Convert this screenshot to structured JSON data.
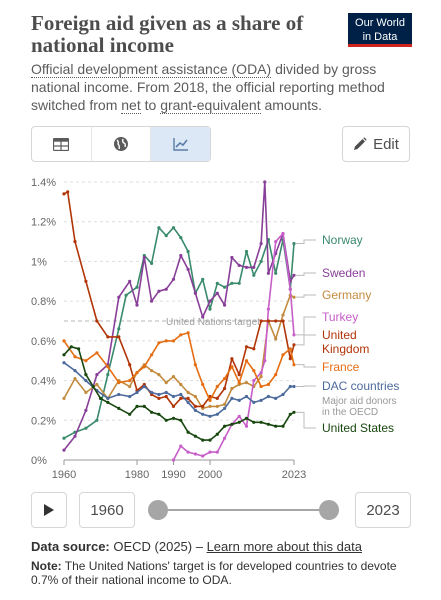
{
  "header": {
    "title": "Foreign aid given as a share of national income",
    "logo_line1": "Our World",
    "logo_line2": "in Data",
    "subtitle_pre": "Official development assistance (ODA)",
    "subtitle_mid": " divided by gross national income. From 2018, the official reporting method switched from ",
    "subtitle_net": "net",
    "subtitle_to": " to ",
    "subtitle_grant": "grant-equivalent",
    "subtitle_post": " amounts."
  },
  "toolbar": {
    "tabs": [
      "table-icon",
      "globe-icon",
      "line-chart-icon"
    ],
    "active_tab": "line-chart-icon",
    "edit_label": "Edit"
  },
  "timeline": {
    "start": "1960",
    "end": "2023"
  },
  "footer": {
    "source_label": "Data source:",
    "source_text": " OECD (2025) – ",
    "source_link": "Learn more about this data",
    "note_label": "Note:",
    "note_text": " The United Nations' target is for developed countries to devote 0.7% of their national income to ODA."
  },
  "chart_data": {
    "type": "line",
    "ylim": [
      0,
      1.4
    ],
    "xlim": [
      1960,
      2023
    ],
    "yticks": [
      "0%",
      "0.2%",
      "0.4%",
      "0.6%",
      "0.8%",
      "1%",
      "1.2%",
      "1.4%"
    ],
    "xticks": [
      "1960",
      "1980",
      "1990",
      "2000",
      "2023"
    ],
    "reference_line": {
      "value": 0.7,
      "label": "United Nations target"
    },
    "legend_position": "right",
    "series": [
      {
        "name": "Norway",
        "color": "#3a8a6c",
        "x": [
          1960,
          1963,
          1966,
          1969,
          1972,
          1975,
          1977,
          1980,
          1982,
          1984,
          1986,
          1988,
          1990,
          1992,
          1994,
          1996,
          1998,
          2000,
          2002,
          2004,
          2006,
          2008,
          2010,
          2012,
          2014,
          2016,
          2018,
          2020,
          2022,
          2023
        ],
        "y": [
          0.11,
          0.14,
          0.16,
          0.2,
          0.43,
          0.66,
          0.83,
          0.87,
          1.03,
          0.99,
          1.17,
          1.13,
          1.17,
          1.12,
          1.05,
          0.84,
          0.91,
          0.76,
          0.89,
          0.87,
          0.89,
          0.89,
          1.05,
          0.93,
          1.0,
          1.11,
          0.94,
          1.11,
          0.86,
          1.09
        ]
      },
      {
        "name": "Sweden",
        "color": "#883f98",
        "x": [
          1960,
          1963,
          1966,
          1969,
          1972,
          1975,
          1978,
          1980,
          1982,
          1984,
          1986,
          1988,
          1990,
          1992,
          1994,
          1996,
          1998,
          2000,
          2002,
          2004,
          2006,
          2008,
          2010,
          2012,
          2014,
          2015,
          2016,
          2018,
          2020,
          2022,
          2023
        ],
        "y": [
          0.05,
          0.12,
          0.25,
          0.43,
          0.48,
          0.82,
          0.9,
          0.78,
          1.02,
          0.8,
          0.85,
          0.86,
          0.91,
          1.03,
          0.96,
          0.84,
          0.72,
          0.8,
          0.84,
          0.78,
          1.02,
          0.98,
          0.97,
          0.97,
          1.09,
          1.4,
          0.94,
          1.04,
          1.14,
          0.9,
          0.93
        ]
      },
      {
        "name": "Germany",
        "color": "#c28c3f",
        "x": [
          1960,
          1963,
          1966,
          1969,
          1972,
          1975,
          1978,
          1980,
          1982,
          1984,
          1986,
          1988,
          1990,
          1992,
          1994,
          1996,
          1998,
          2000,
          2002,
          2004,
          2006,
          2008,
          2010,
          2012,
          2014,
          2016,
          2018,
          2020,
          2022,
          2023
        ],
        "y": [
          0.31,
          0.41,
          0.34,
          0.38,
          0.31,
          0.4,
          0.37,
          0.44,
          0.48,
          0.45,
          0.43,
          0.39,
          0.42,
          0.38,
          0.34,
          0.32,
          0.26,
          0.27,
          0.27,
          0.28,
          0.36,
          0.38,
          0.39,
          0.37,
          0.42,
          0.7,
          0.61,
          0.73,
          0.83,
          0.82
        ]
      },
      {
        "name": "Turkey",
        "color": "#c75ec9",
        "x": [
          1990,
          1992,
          1994,
          1996,
          1998,
          2000,
          2002,
          2004,
          2006,
          2008,
          2010,
          2012,
          2014,
          2015,
          2016,
          2018,
          2020,
          2022,
          2023
        ],
        "y": [
          0.0,
          0.07,
          0.04,
          0.03,
          0.02,
          0.04,
          0.04,
          0.11,
          0.18,
          0.22,
          0.17,
          0.4,
          0.44,
          0.5,
          0.76,
          1.1,
          1.14,
          0.86,
          0.63
        ]
      },
      {
        "name": "United Kingdom",
        "color": "#b13507",
        "x": [
          1960,
          1961,
          1963,
          1966,
          1969,
          1972,
          1975,
          1978,
          1980,
          1982,
          1984,
          1986,
          1988,
          1990,
          1992,
          1994,
          1996,
          1998,
          2000,
          2002,
          2004,
          2006,
          2008,
          2010,
          2012,
          2014,
          2016,
          2018,
          2020,
          2022,
          2023
        ],
        "y": [
          1.34,
          1.35,
          1.1,
          0.9,
          0.7,
          0.62,
          0.62,
          0.48,
          0.35,
          0.38,
          0.33,
          0.31,
          0.32,
          0.27,
          0.31,
          0.31,
          0.27,
          0.27,
          0.32,
          0.31,
          0.36,
          0.51,
          0.43,
          0.57,
          0.56,
          0.7,
          0.7,
          0.7,
          0.7,
          0.51,
          0.58
        ]
      },
      {
        "name": "France",
        "color": "#e56e13",
        "x": [
          1960,
          1963,
          1966,
          1969,
          1972,
          1975,
          1978,
          1980,
          1982,
          1984,
          1986,
          1988,
          1990,
          1992,
          1994,
          1996,
          1998,
          2000,
          2002,
          2004,
          2006,
          2008,
          2010,
          2012,
          2014,
          2016,
          2018,
          2020,
          2022,
          2023
        ],
        "y": [
          0.6,
          0.52,
          0.5,
          0.54,
          0.47,
          0.39,
          0.4,
          0.44,
          0.47,
          0.53,
          0.59,
          0.6,
          0.6,
          0.63,
          0.64,
          0.48,
          0.38,
          0.3,
          0.37,
          0.41,
          0.47,
          0.39,
          0.5,
          0.45,
          0.37,
          0.38,
          0.43,
          0.53,
          0.56,
          0.48
        ]
      },
      {
        "name": "DAC countries",
        "color": "#4c6a9c",
        "x": [
          1960,
          1963,
          1966,
          1969,
          1972,
          1975,
          1978,
          1980,
          1982,
          1984,
          1986,
          1988,
          1990,
          1992,
          1994,
          1996,
          1998,
          2000,
          2002,
          2004,
          2006,
          2008,
          2010,
          2012,
          2014,
          2016,
          2018,
          2020,
          2022,
          2023
        ],
        "y": [
          0.49,
          0.45,
          0.4,
          0.35,
          0.31,
          0.33,
          0.32,
          0.34,
          0.37,
          0.34,
          0.33,
          0.34,
          0.32,
          0.33,
          0.29,
          0.25,
          0.23,
          0.22,
          0.23,
          0.26,
          0.31,
          0.3,
          0.32,
          0.29,
          0.3,
          0.32,
          0.31,
          0.33,
          0.37,
          0.37
        ]
      },
      {
        "name": "United States",
        "color": "#18470f",
        "x": [
          1960,
          1962,
          1964,
          1966,
          1968,
          1970,
          1972,
          1975,
          1978,
          1980,
          1982,
          1984,
          1986,
          1988,
          1990,
          1992,
          1994,
          1996,
          1998,
          2000,
          2002,
          2004,
          2006,
          2008,
          2010,
          2012,
          2014,
          2016,
          2018,
          2020,
          2022,
          2023
        ],
        "y": [
          0.53,
          0.57,
          0.56,
          0.43,
          0.37,
          0.31,
          0.29,
          0.26,
          0.23,
          0.27,
          0.27,
          0.24,
          0.23,
          0.2,
          0.21,
          0.2,
          0.14,
          0.12,
          0.1,
          0.1,
          0.13,
          0.17,
          0.18,
          0.19,
          0.21,
          0.19,
          0.19,
          0.18,
          0.17,
          0.17,
          0.23,
          0.24
        ]
      }
    ],
    "legend_extra": {
      "after": "DAC countries",
      "text_line1": "Major aid donors",
      "text_line2": "in the OECD"
    }
  }
}
